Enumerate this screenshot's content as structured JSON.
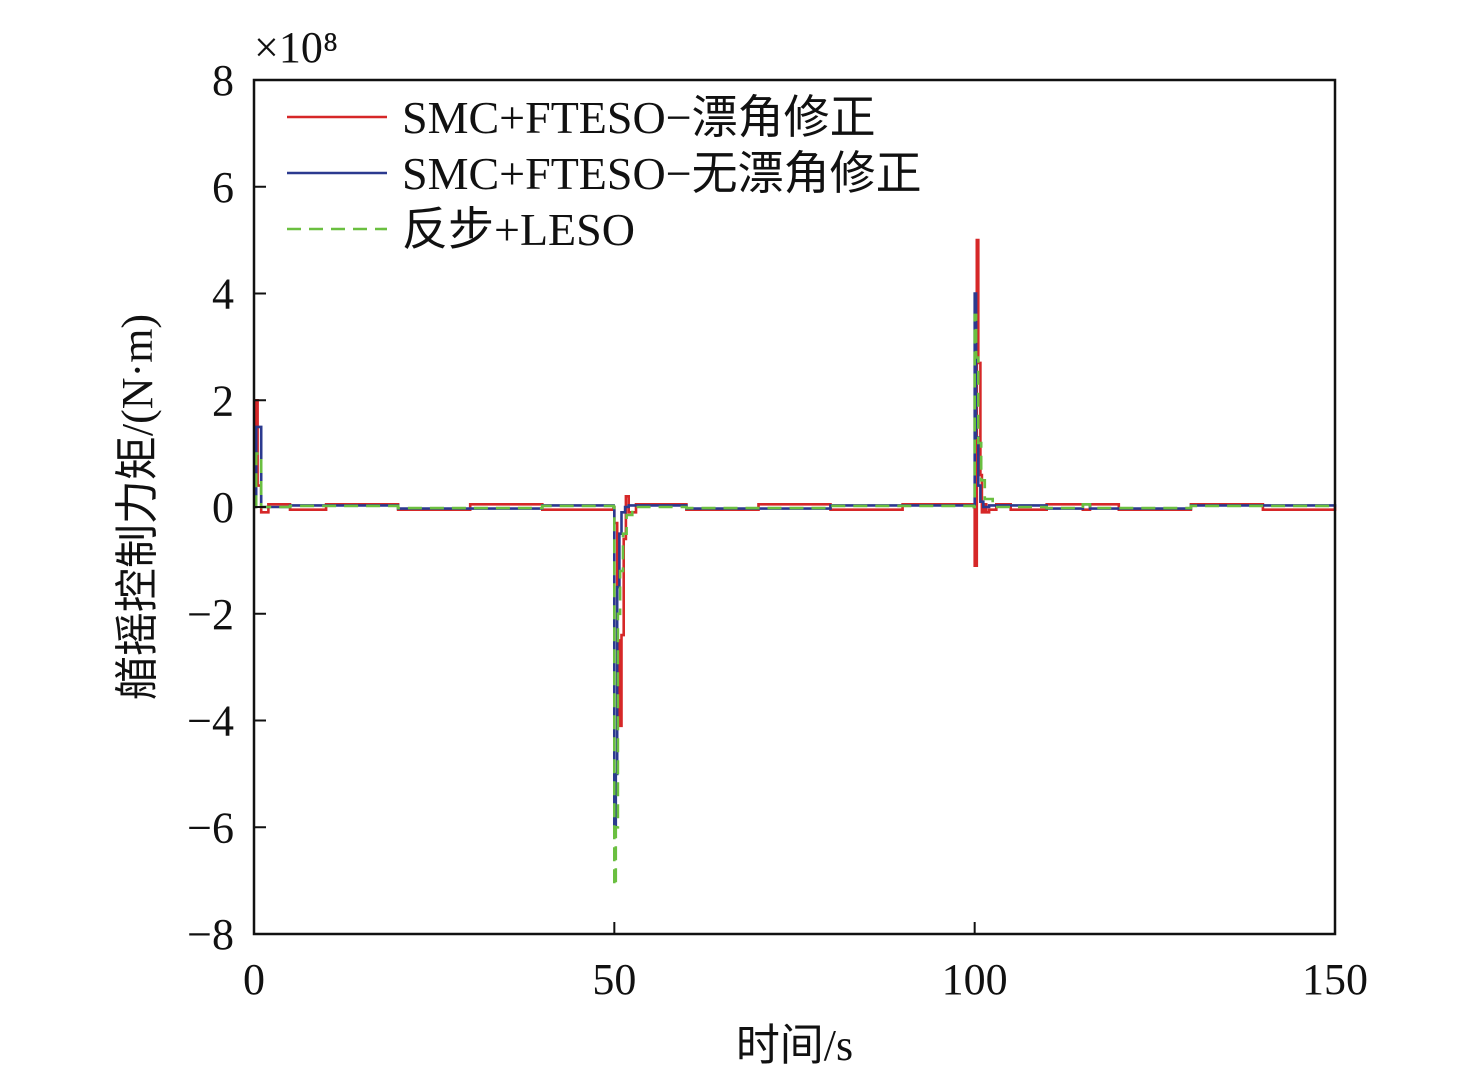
{
  "chart_data": {
    "type": "line",
    "title": "",
    "xlabel": "时间/s",
    "ylabel": "艏摇控制力矩/(N·m)",
    "y_multiplier_label": "×10⁸",
    "xlim": [
      0,
      150
    ],
    "ylim": [
      -8,
      8
    ],
    "x_ticks": [
      0,
      50,
      100,
      150
    ],
    "y_ticks": [
      -8,
      -6,
      -4,
      -2,
      0,
      2,
      4,
      6,
      8
    ],
    "x_tick_labels": [
      "0",
      "50",
      "100",
      "150"
    ],
    "y_tick_labels": [
      "−8",
      "−6",
      "−4",
      "−2",
      "0",
      "2",
      "4",
      "6",
      "8"
    ],
    "grid": false,
    "legend_position": "top-left",
    "series": [
      {
        "name": "SMC+FTESO−漂角修正",
        "color": "#d62728",
        "dash": "solid",
        "x": [
          0,
          0.2,
          0.5,
          1,
          2,
          5,
          10,
          20,
          30,
          40,
          49.9,
          50,
          50.4,
          50.7,
          51,
          51.3,
          51.6,
          52,
          53,
          60,
          70,
          80,
          90,
          99.9,
          100,
          100.3,
          100.5,
          100.8,
          101,
          101.3,
          101.6,
          102,
          103,
          105,
          110,
          115,
          116,
          120,
          130,
          140,
          150
        ],
        "y": [
          0,
          2.0,
          0.4,
          -0.1,
          0.05,
          -0.05,
          0.05,
          -0.05,
          0.05,
          -0.05,
          0,
          -0.3,
          -2.5,
          -4.1,
          -2.4,
          -0.6,
          0.2,
          -0.1,
          0.05,
          -0.05,
          0.05,
          -0.05,
          0.05,
          0,
          -1.1,
          5.0,
          2.7,
          0.6,
          -0.1,
          0.05,
          -0.1,
          -0.05,
          0.05,
          -0.05,
          0.05,
          -0.05,
          0.05,
          -0.05,
          0.05,
          -0.05,
          0
        ]
      },
      {
        "name": "SMC+FTESO−无漂角修正",
        "color": "#2b3a8f",
        "dash": "solid",
        "x": [
          0,
          0.3,
          1,
          5,
          20,
          40,
          49.9,
          50,
          50.2,
          50.4,
          50.7,
          51,
          51.5,
          52,
          60,
          80,
          99.9,
          100,
          100.2,
          100.5,
          100.8,
          101.2,
          102,
          110,
          115,
          116,
          130,
          150
        ],
        "y": [
          0,
          1.5,
          0,
          0.03,
          -0.03,
          0.03,
          0,
          -6.0,
          -5.0,
          -1.5,
          -0.5,
          -0.1,
          0,
          0.03,
          -0.03,
          0.03,
          0,
          4.0,
          1.3,
          0.4,
          0.1,
          0,
          0.03,
          -0.03,
          0.05,
          -0.03,
          0.03,
          0
        ]
      },
      {
        "name": "反步+LESO",
        "color": "#6abf40",
        "dash": "dashed",
        "x": [
          0,
          0.3,
          1,
          5,
          20,
          40,
          49.9,
          50,
          50.2,
          50.5,
          50.8,
          51.2,
          51.7,
          52.5,
          60,
          80,
          99.9,
          100,
          100.2,
          100.5,
          100.9,
          101.4,
          102.5,
          110,
          115,
          116,
          130,
          150
        ],
        "y": [
          0,
          1.0,
          0,
          0.02,
          -0.02,
          0.02,
          0,
          -7.1,
          -6.0,
          -2.0,
          -1.2,
          -0.5,
          -0.15,
          0,
          -0.02,
          0.02,
          0,
          3.6,
          2.8,
          1.2,
          0.5,
          0.15,
          0,
          -0.02,
          0.05,
          -0.02,
          0.02,
          0
        ]
      }
    ]
  }
}
